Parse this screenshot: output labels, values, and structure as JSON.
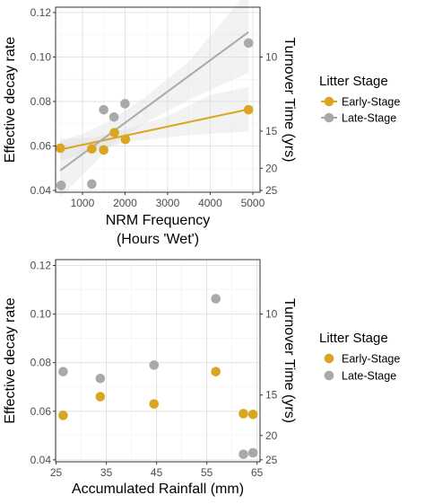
{
  "colors": {
    "early": "#DAA520",
    "late": "#A9A9A9",
    "panel_border": "#333333",
    "grid_major": "#e3e3e3",
    "grid_minor": "#f2f2f2",
    "ribbon": "#d9d9d9"
  },
  "chart_data": [
    {
      "type": "scatter",
      "xlabel_lines": [
        "NRM Frequency",
        "(Hours 'Wet')"
      ],
      "ylabel": "Effective decay rate",
      "y2label": "Turnover Time (yrs)",
      "xlim": [
        370,
        5170
      ],
      "ylim": [
        0.0392,
        0.1224
      ],
      "x_ticks": [
        "1000",
        "2000",
        "3000",
        "4000",
        "5000"
      ],
      "y_ticks": [
        "0.04",
        "0.06",
        "0.08",
        "0.10",
        "0.12"
      ],
      "y2_ticks": [
        "10",
        "15",
        "20",
        "25"
      ],
      "grid": true,
      "legend": {
        "title": "Litter Stage",
        "position": "right",
        "entries": [
          "Early-Stage",
          "Late-Stage"
        ]
      },
      "series": [
        {
          "name": "Early-Stage",
          "points": [
            [
              480,
              0.059
            ],
            [
              1220,
              0.0587
            ],
            [
              1500,
              0.0582
            ],
            [
              1750,
              0.066
            ],
            [
              2010,
              0.063
            ],
            [
              4900,
              0.0763
            ]
          ],
          "fit": [
            [
              480,
              0.0584
            ],
            [
              4900,
              0.0765
            ]
          ],
          "band": [
            [
              480,
              0.0535,
              0.0633
            ],
            [
              1200,
              0.0572,
              0.0636
            ],
            [
              2000,
              0.0615,
              0.0672
            ],
            [
              3000,
              0.064,
              0.0735
            ],
            [
              4000,
              0.0655,
              0.0829
            ],
            [
              4900,
              0.0665,
              0.0865
            ]
          ]
        },
        {
          "name": "Late-Stage",
          "points": [
            [
              500,
              0.0423
            ],
            [
              1220,
              0.0429
            ],
            [
              1500,
              0.0763
            ],
            [
              1740,
              0.073
            ],
            [
              2000,
              0.079
            ],
            [
              4900,
              0.1063
            ]
          ],
          "fit": [
            [
              480,
              0.049
            ],
            [
              4900,
              0.1112
            ]
          ],
          "band": [
            [
              480,
              0.037,
              0.062
            ],
            [
              1000,
              0.047,
              0.0654
            ],
            [
              1700,
              0.0605,
              0.0718
            ],
            [
              2500,
              0.0706,
              0.0823
            ],
            [
              3500,
              0.0808,
              0.098
            ],
            [
              4900,
              0.093,
              0.13
            ]
          ]
        }
      ]
    },
    {
      "type": "scatter",
      "xlabel_lines": [
        "Accumulated Rainfall (mm)"
      ],
      "ylabel": "Effective decay rate",
      "y2label": "Turnover Time (yrs)",
      "xlim": [
        24.9,
        65.6
      ],
      "ylim": [
        0.0392,
        0.1224
      ],
      "x_ticks": [
        "25",
        "35",
        "45",
        "55",
        "65"
      ],
      "y_ticks": [
        "0.04",
        "0.06",
        "0.08",
        "0.10",
        "0.12"
      ],
      "y2_ticks": [
        "10",
        "15",
        "20",
        "25"
      ],
      "grid": true,
      "legend": {
        "title": "Litter Stage",
        "position": "right",
        "entries": [
          "Early-Stage",
          "Late-Stage"
        ]
      },
      "series": [
        {
          "name": "Early-Stage",
          "points": [
            [
              26.4,
              0.0583
            ],
            [
              33.8,
              0.066
            ],
            [
              44.5,
              0.063
            ],
            [
              56.8,
              0.0763
            ],
            [
              62.3,
              0.059
            ],
            [
              64.2,
              0.0587
            ]
          ]
        },
        {
          "name": "Late-Stage",
          "points": [
            [
              26.4,
              0.0763
            ],
            [
              33.8,
              0.0735
            ],
            [
              44.5,
              0.079
            ],
            [
              56.8,
              0.1063
            ],
            [
              62.3,
              0.0423
            ],
            [
              64.2,
              0.0429
            ]
          ]
        }
      ]
    }
  ]
}
